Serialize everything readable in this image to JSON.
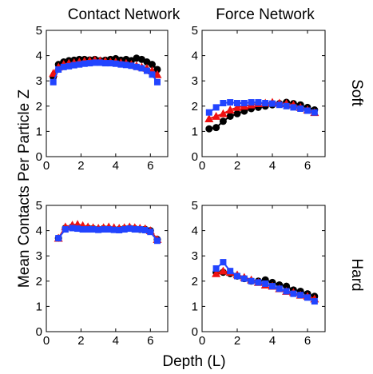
{
  "figure": {
    "ylabel": "Mean Contacts Per Particle Z",
    "xlabel": "Depth (L)",
    "column_titles": [
      "Contact Network",
      "Force Network"
    ],
    "row_labels": [
      "Soft",
      "Hard"
    ]
  },
  "colors": {
    "black": "#000000",
    "red": "#ee1111",
    "blue": "#2244ff"
  },
  "chart_data": [
    {
      "type": "line",
      "panel": "Contact Network / Soft",
      "xlim": [
        0,
        7
      ],
      "ylim": [
        0,
        5
      ],
      "xticks": [
        0,
        2,
        4,
        6
      ],
      "yticks": [
        0,
        1,
        2,
        3,
        4,
        5
      ],
      "grid": false,
      "series": [
        {
          "color": "black",
          "marker": "circle",
          "x": [
            0.4,
            0.7,
            1.0,
            1.3,
            1.6,
            1.9,
            2.2,
            2.5,
            2.8,
            3.1,
            3.4,
            3.7,
            4.0,
            4.3,
            4.6,
            4.9,
            5.2,
            5.5,
            5.8,
            6.1,
            6.4
          ],
          "y": [
            3.15,
            3.65,
            3.75,
            3.8,
            3.82,
            3.85,
            3.85,
            3.83,
            3.85,
            3.8,
            3.82,
            3.85,
            3.88,
            3.82,
            3.85,
            3.8,
            3.9,
            3.85,
            3.75,
            3.65,
            3.45
          ]
        },
        {
          "color": "red",
          "marker": "triangle",
          "x": [
            0.4,
            0.7,
            1.0,
            1.3,
            1.6,
            1.9,
            2.2,
            2.5,
            2.8,
            3.1,
            3.4,
            3.7,
            4.0,
            4.3,
            4.6,
            4.9,
            5.2,
            5.5,
            5.8,
            6.1,
            6.4
          ],
          "y": [
            3.3,
            3.55,
            3.65,
            3.7,
            3.72,
            3.75,
            3.78,
            3.8,
            3.82,
            3.8,
            3.78,
            3.75,
            3.75,
            3.72,
            3.7,
            3.65,
            3.6,
            3.55,
            3.5,
            3.4,
            3.25
          ]
        },
        {
          "color": "blue",
          "marker": "square",
          "x": [
            0.4,
            0.7,
            1.0,
            1.3,
            1.6,
            1.9,
            2.2,
            2.5,
            2.8,
            3.1,
            3.4,
            3.7,
            4.0,
            4.3,
            4.6,
            4.9,
            5.2,
            5.5,
            5.8,
            6.1,
            6.4
          ],
          "y": [
            2.95,
            3.45,
            3.55,
            3.58,
            3.62,
            3.65,
            3.68,
            3.7,
            3.72,
            3.72,
            3.7,
            3.7,
            3.68,
            3.65,
            3.63,
            3.6,
            3.55,
            3.5,
            3.4,
            3.25,
            2.95
          ]
        }
      ]
    },
    {
      "type": "line",
      "panel": "Force Network / Soft",
      "xlim": [
        0,
        7
      ],
      "ylim": [
        0,
        5
      ],
      "xticks": [
        0,
        2,
        4,
        6
      ],
      "yticks": [
        0,
        1,
        2,
        3,
        4,
        5
      ],
      "grid": false,
      "series": [
        {
          "color": "black",
          "marker": "circle",
          "x": [
            0.4,
            0.8,
            1.2,
            1.6,
            2.0,
            2.4,
            2.8,
            3.2,
            3.6,
            4.0,
            4.4,
            4.8,
            5.2,
            5.6,
            6.0,
            6.4
          ],
          "y": [
            1.1,
            1.15,
            1.4,
            1.6,
            1.7,
            1.8,
            1.9,
            1.95,
            2.0,
            2.05,
            2.1,
            2.15,
            2.1,
            2.05,
            1.95,
            1.85
          ]
        },
        {
          "color": "red",
          "marker": "triangle",
          "x": [
            0.4,
            0.8,
            1.2,
            1.6,
            2.0,
            2.4,
            2.8,
            3.2,
            3.6,
            4.0,
            4.4,
            4.8,
            5.2,
            5.6,
            6.0,
            6.4
          ],
          "y": [
            1.5,
            1.6,
            1.7,
            1.85,
            1.95,
            2.0,
            2.05,
            2.1,
            2.12,
            2.15,
            2.12,
            2.1,
            2.05,
            1.95,
            1.85,
            1.75
          ]
        },
        {
          "color": "blue",
          "marker": "square",
          "x": [
            0.4,
            0.8,
            1.2,
            1.6,
            2.0,
            2.4,
            2.8,
            3.2,
            3.6,
            4.0,
            4.4,
            4.8,
            5.2,
            5.6,
            6.0,
            6.4
          ],
          "y": [
            1.75,
            1.95,
            2.12,
            2.15,
            2.12,
            2.12,
            2.15,
            2.15,
            2.12,
            2.1,
            2.05,
            2.0,
            1.95,
            1.9,
            1.82,
            1.75
          ]
        }
      ]
    },
    {
      "type": "line",
      "panel": "Contact Network / Hard",
      "xlim": [
        0,
        7
      ],
      "ylim": [
        0,
        5
      ],
      "xticks": [
        0,
        2,
        4,
        6
      ],
      "yticks": [
        0,
        1,
        2,
        3,
        4,
        5
      ],
      "grid": false,
      "series": [
        {
          "color": "black",
          "marker": "circle",
          "x": [
            0.7,
            1.1,
            1.5,
            1.8,
            2.1,
            2.4,
            2.7,
            3.0,
            3.3,
            3.6,
            3.9,
            4.2,
            4.5,
            4.8,
            5.1,
            5.4,
            5.7,
            6.0,
            6.4
          ],
          "y": [
            3.7,
            4.1,
            4.15,
            4.12,
            4.08,
            4.1,
            4.08,
            4.05,
            4.08,
            4.08,
            4.05,
            4.05,
            4.08,
            4.1,
            4.08,
            4.05,
            4.05,
            4.0,
            3.65
          ]
        },
        {
          "color": "red",
          "marker": "triangle",
          "x": [
            0.7,
            1.1,
            1.5,
            1.8,
            2.1,
            2.4,
            2.7,
            3.0,
            3.3,
            3.6,
            3.9,
            4.2,
            4.5,
            4.8,
            5.1,
            5.4,
            5.7,
            6.0,
            6.4
          ],
          "y": [
            3.7,
            4.15,
            4.22,
            4.25,
            4.2,
            4.15,
            4.12,
            4.1,
            4.12,
            4.15,
            4.12,
            4.1,
            4.12,
            4.15,
            4.12,
            4.1,
            4.08,
            4.0,
            3.65
          ]
        },
        {
          "color": "blue",
          "marker": "square",
          "x": [
            0.7,
            1.1,
            1.5,
            1.8,
            2.1,
            2.4,
            2.7,
            3.0,
            3.3,
            3.6,
            3.9,
            4.2,
            4.5,
            4.8,
            5.1,
            5.4,
            5.7,
            6.0,
            6.4
          ],
          "y": [
            3.7,
            4.05,
            4.1,
            4.08,
            4.05,
            4.05,
            4.05,
            4.03,
            4.05,
            4.05,
            4.03,
            4.02,
            4.05,
            4.08,
            4.05,
            4.05,
            4.02,
            3.95,
            3.6
          ]
        }
      ]
    },
    {
      "type": "line",
      "panel": "Force Network / Hard",
      "xlim": [
        0,
        7
      ],
      "ylim": [
        0,
        5
      ],
      "xticks": [
        0,
        2,
        4,
        6
      ],
      "yticks": [
        0,
        1,
        2,
        3,
        4,
        5
      ],
      "grid": false,
      "series": [
        {
          "color": "black",
          "marker": "circle",
          "x": [
            0.8,
            1.2,
            1.6,
            2.0,
            2.4,
            2.8,
            3.2,
            3.6,
            4.0,
            4.4,
            4.8,
            5.2,
            5.6,
            6.0,
            6.4
          ],
          "y": [
            2.35,
            2.35,
            2.3,
            2.2,
            2.1,
            2.0,
            2.0,
            2.05,
            1.95,
            1.85,
            1.8,
            1.65,
            1.6,
            1.5,
            1.4
          ]
        },
        {
          "color": "red",
          "marker": "triangle",
          "x": [
            0.8,
            1.2,
            1.6,
            2.0,
            2.4,
            2.8,
            3.2,
            3.6,
            4.0,
            4.4,
            4.8,
            5.2,
            5.6,
            6.0,
            6.4
          ],
          "y": [
            2.3,
            2.4,
            2.35,
            2.25,
            2.15,
            2.05,
            1.95,
            1.85,
            1.8,
            1.7,
            1.6,
            1.55,
            1.45,
            1.4,
            1.3
          ]
        },
        {
          "color": "blue",
          "marker": "square",
          "x": [
            0.8,
            1.2,
            1.6,
            2.0,
            2.4,
            2.8,
            3.2,
            3.6,
            4.0,
            4.4,
            4.8,
            5.2,
            5.6,
            6.0,
            6.4
          ],
          "y": [
            2.5,
            2.75,
            2.4,
            2.2,
            2.1,
            2.0,
            1.95,
            1.9,
            1.8,
            1.7,
            1.6,
            1.5,
            1.45,
            1.35,
            1.2
          ]
        }
      ]
    }
  ]
}
